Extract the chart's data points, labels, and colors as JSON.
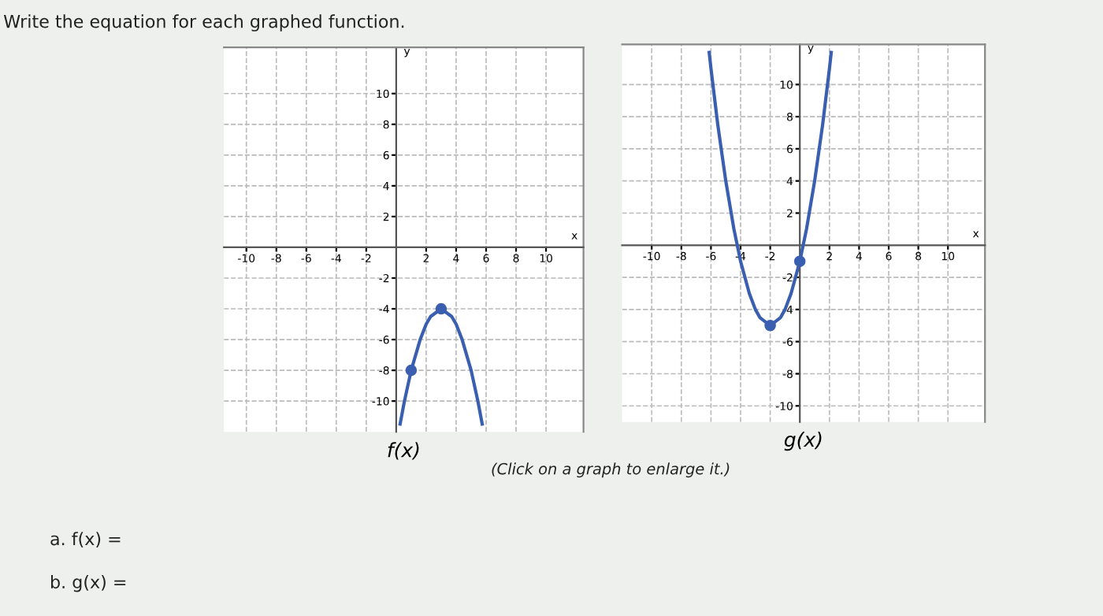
{
  "chart_data": [
    {
      "type": "line",
      "title": "f(x)",
      "xlabel": "x",
      "ylabel": "y",
      "xlim": [
        -11.5,
        12.5
      ],
      "ylim": [
        -12,
        13
      ],
      "xticks": [
        -10,
        -8,
        -6,
        -4,
        -2,
        2,
        4,
        6,
        8,
        10
      ],
      "yticks": [
        -10,
        -8,
        -6,
        -4,
        -2,
        2,
        4,
        6,
        8,
        10
      ],
      "grid": true,
      "line_style": "solid",
      "annotations": [
        "Write the equation for each graphed function.",
        "(Click on a graph to enlarge it.)",
        "a. f(x) =",
        "b. g(x) ="
      ],
      "series": [
        {
          "color": "#3a5fb0",
          "marker": "none",
          "x": [
            0.26,
            0.55,
            1,
            1.6,
            2,
            2.3,
            3,
            3.7,
            4,
            4.4,
            5,
            5.45,
            5.74
          ],
          "values": [
            -11.5,
            -10,
            -8,
            -6,
            -5,
            -4.5,
            -4,
            -4.5,
            -5,
            -6,
            -8,
            -10,
            -11.5
          ]
        },
        {
          "type": "scatter",
          "color": "#3a5fb0",
          "marker": "circle",
          "x": [
            3,
            1
          ],
          "values": [
            -4,
            -8
          ]
        }
      ]
    },
    {
      "type": "line",
      "title": "g(x)",
      "xlabel": "x",
      "ylabel": "y",
      "xlim": [
        -12,
        12.5
      ],
      "ylim": [
        -11,
        12.5
      ],
      "xticks": [
        -10,
        -8,
        -6,
        -4,
        -2,
        2,
        4,
        6,
        8,
        10
      ],
      "yticks": [
        -10,
        -8,
        -6,
        -4,
        -2,
        2,
        4,
        6,
        8,
        10
      ],
      "grid": true,
      "line_style": "solid",
      "series": [
        {
          "color": "#3a5fb0",
          "marker": "none",
          "x": [
            -6.12,
            -6,
            -5.54,
            -5,
            -4.45,
            -4,
            -3.41,
            -3,
            -2.7,
            -2,
            -1.3,
            -1,
            -0.59,
            0,
            0.45,
            1,
            1.54,
            2,
            2.12
          ],
          "values": [
            12,
            11,
            7.5,
            4,
            1,
            -1,
            -3,
            -4,
            -4.5,
            -5,
            -4.5,
            -4,
            -3,
            -1,
            1,
            4,
            7.5,
            11,
            12
          ]
        },
        {
          "type": "scatter",
          "color": "#3a5fb0",
          "marker": "circle",
          "x": [
            -2,
            0
          ],
          "values": [
            -5,
            -1
          ]
        }
      ]
    }
  ]
}
